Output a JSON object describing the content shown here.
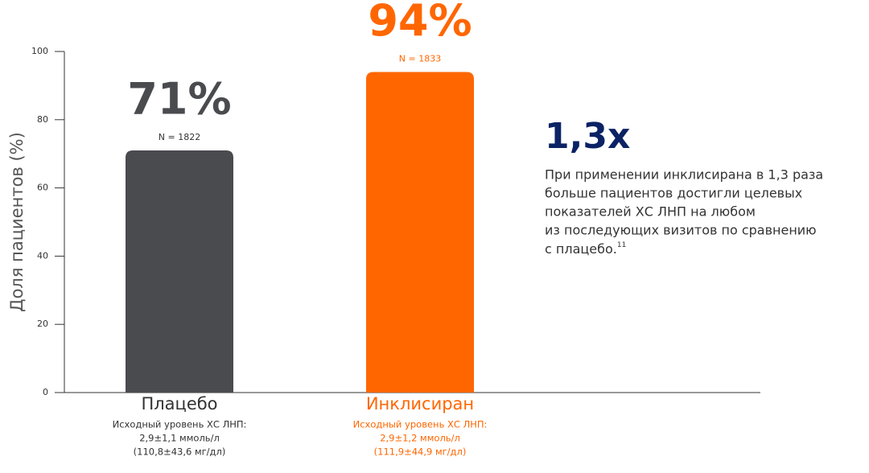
{
  "chart_data": {
    "type": "bar",
    "y_label": "Доля пациентов (%)",
    "categories": [
      "Плацебо",
      "Инклисиран"
    ],
    "values": [
      71,
      94
    ],
    "value_labels": [
      "71%",
      "94%"
    ],
    "n_labels": [
      "N = 1822",
      "N = 1833"
    ],
    "category_notes": [
      [
        "Исходный уровень ХС ЛНП:",
        "2,9±1,1 ммоль/л",
        "(110,8±43,6 мг/дл)"
      ],
      [
        "Исходный уровень ХС ЛНП:",
        "2,9±1,2 ммоль/л",
        "(111,9±44,9 мг/дл)"
      ]
    ],
    "colors": [
      "#4a4b4f",
      "#ff6600"
    ],
    "ylim": [
      0,
      100
    ],
    "yticks": [
      0,
      20,
      40,
      60,
      80,
      100
    ],
    "grid": false,
    "annotation": {
      "headline": "1,3x",
      "lines": [
        "При применении инклисирана в 1,3 раза",
        "больше пациентов достигли целевых",
        "показателей ХС ЛНП на любом",
        "из последующих визитов по сравнению",
        "с плацебо."
      ],
      "footnote_ref": "11"
    }
  }
}
